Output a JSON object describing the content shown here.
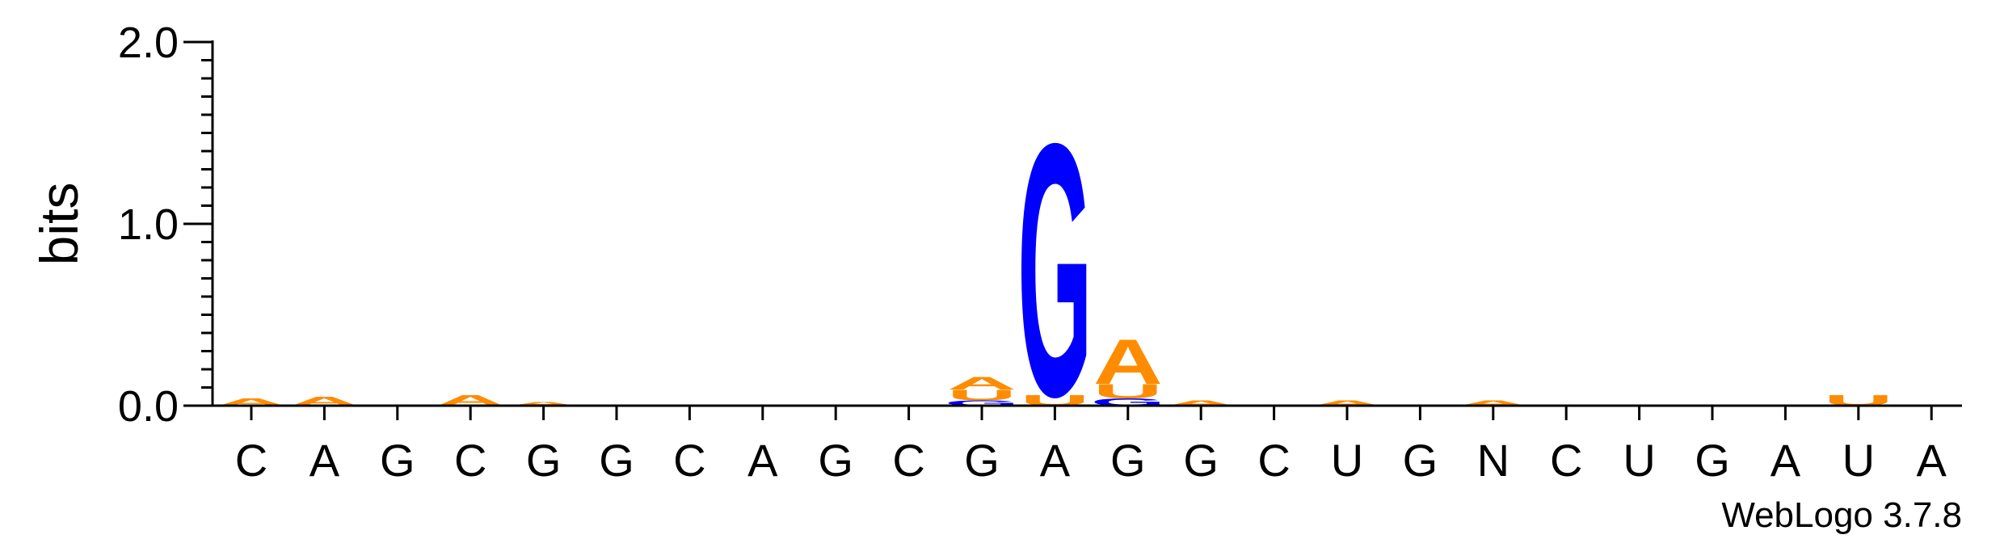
{
  "chart_data": {
    "type": "sequence-logo",
    "ylabel": "bits",
    "ylim": [
      0,
      2.0
    ],
    "yticks": [
      {
        "value": 0.0,
        "label": "0.0"
      },
      {
        "value": 1.0,
        "label": "1.0"
      },
      {
        "value": 2.0,
        "label": "2.0"
      }
    ],
    "yminor_step": 0.1,
    "positions": [
      "C",
      "A",
      "G",
      "C",
      "G",
      "G",
      "C",
      "A",
      "G",
      "C",
      "G",
      "A",
      "G",
      "G",
      "C",
      "U",
      "G",
      "N",
      "C",
      "U",
      "G",
      "A",
      "U",
      "A"
    ],
    "colors": {
      "A": "#ff8c00",
      "U": "#ff8c00",
      "G": "#0000ff",
      "C": "#0000ff"
    },
    "stacks": [
      [
        {
          "letter": "A",
          "height": 0.04
        }
      ],
      [
        {
          "letter": "A",
          "height": 0.05
        }
      ],
      [],
      [
        {
          "letter": "A",
          "height": 0.06
        }
      ],
      [
        {
          "letter": "A",
          "height": 0.02
        }
      ],
      [],
      [],
      [],
      [],
      [],
      [
        {
          "letter": "G",
          "height": 0.03
        },
        {
          "letter": "U",
          "height": 0.06
        },
        {
          "letter": "A",
          "height": 0.07
        }
      ],
      [
        {
          "letter": "U",
          "height": 0.06
        },
        {
          "letter": "G",
          "height": 1.42
        }
      ],
      [
        {
          "letter": "G",
          "height": 0.04
        },
        {
          "letter": "U",
          "height": 0.08
        },
        {
          "letter": "A",
          "height": 0.25
        }
      ],
      [
        {
          "letter": "A",
          "height": 0.03
        }
      ],
      [],
      [
        {
          "letter": "A",
          "height": 0.03
        }
      ],
      [],
      [
        {
          "letter": "A",
          "height": 0.03
        }
      ],
      [],
      [],
      [],
      [],
      [
        {
          "letter": "U",
          "height": 0.06
        }
      ],
      []
    ]
  },
  "credit": "WebLogo 3.7.8"
}
